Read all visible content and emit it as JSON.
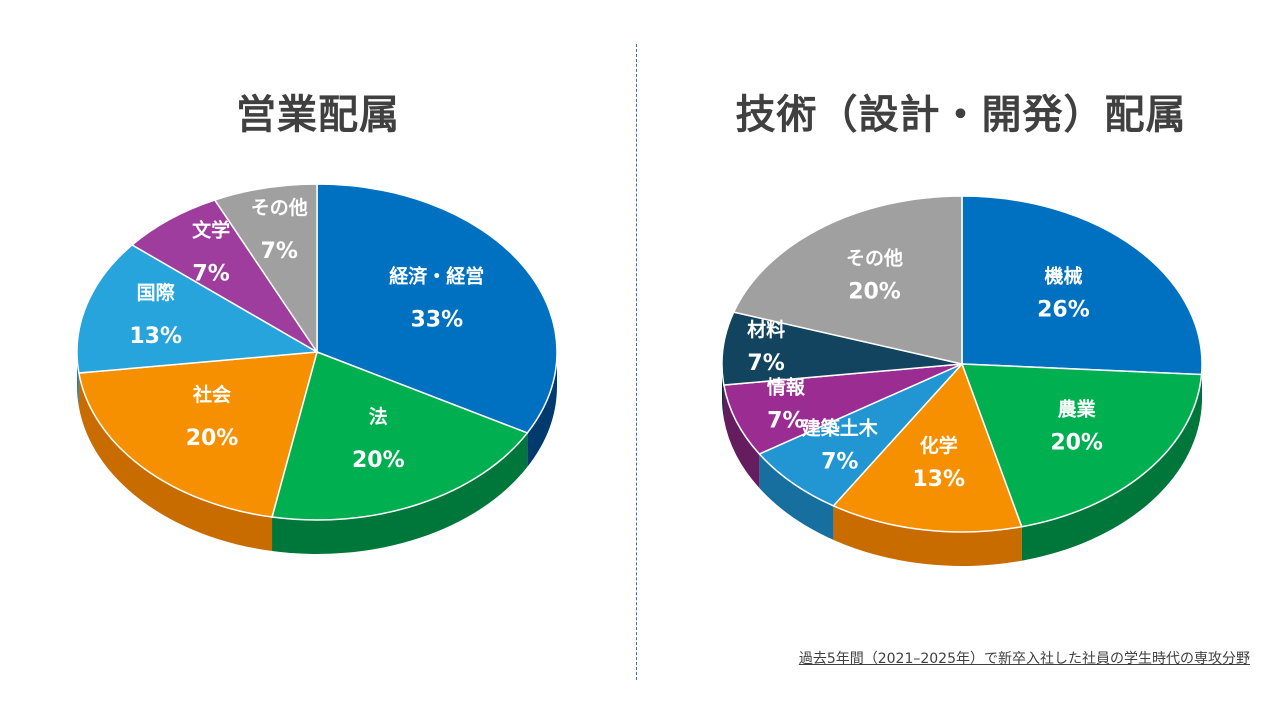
{
  "chart_data": [
    {
      "type": "pie",
      "title": "営業配属",
      "categories": [
        "経済・経営",
        "法",
        "社会",
        "国際",
        "文学",
        "その他"
      ],
      "values": [
        33,
        20,
        20,
        13,
        7,
        7
      ],
      "labels": [
        "33%",
        "20%",
        "20%",
        "13%",
        "7%",
        "7%"
      ],
      "colors": [
        "#0070c0",
        "#00b050",
        "#f79000",
        "#27a4dc",
        "#9e3d9d",
        "#a0a0a0"
      ],
      "side_colors": [
        "#003a6e",
        "#00773a",
        "#c86c00",
        "#1a7fb0",
        "#6e2a6e",
        "#707070"
      ]
    },
    {
      "type": "pie",
      "title": "技術（設計・開発）配属",
      "categories": [
        "機械",
        "農業",
        "化学",
        "建築土木",
        "情報",
        "材料",
        "その他"
      ],
      "values": [
        26,
        20,
        13,
        7,
        7,
        7,
        20
      ],
      "labels": [
        "26%",
        "20%",
        "13%",
        "7%",
        "7%",
        "7%",
        "20%"
      ],
      "colors": [
        "#0070c0",
        "#00b050",
        "#f79000",
        "#2196d3",
        "#9b2d92",
        "#12445f",
        "#a0a0a0"
      ],
      "side_colors": [
        "#003a6e",
        "#00773a",
        "#c86c00",
        "#176fa0",
        "#651d60",
        "#0a2838",
        "#707070"
      ]
    }
  ],
  "footnote": "過去5年間（2021–2025年）で新卒入社した社員の学生時代の専攻分野"
}
